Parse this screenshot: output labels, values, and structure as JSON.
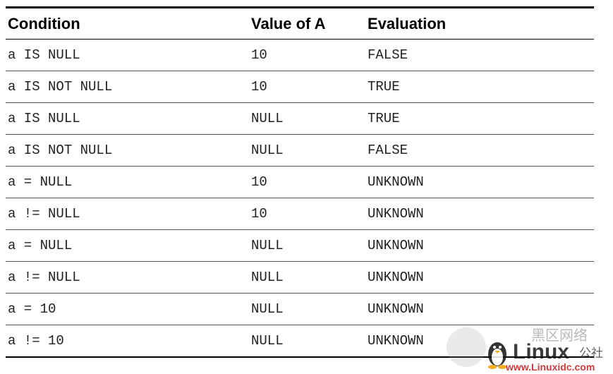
{
  "table": {
    "headers": [
      "Condition",
      "Value of A",
      "Evaluation"
    ],
    "rows": [
      [
        "a IS NULL",
        "10",
        "FALSE"
      ],
      [
        "a IS NOT NULL",
        "10",
        "TRUE"
      ],
      [
        "a IS NULL",
        "NULL",
        "TRUE"
      ],
      [
        "a IS NOT NULL",
        "NULL",
        "FALSE"
      ],
      [
        "a = NULL",
        "10",
        "UNKNOWN"
      ],
      [
        "a != NULL",
        "10",
        "UNKNOWN"
      ],
      [
        "a = NULL",
        "NULL",
        "UNKNOWN"
      ],
      [
        "a != NULL",
        "NULL",
        "UNKNOWN"
      ],
      [
        "a = 10",
        "NULL",
        "UNKNOWN"
      ],
      [
        "a != 10",
        "NULL",
        "UNKNOWN"
      ]
    ]
  },
  "watermark": {
    "brand": "Linux",
    "suffix": "公社",
    "chinese": "黑区网络",
    "url": "www.Linuxidc.com",
    "accent": "#c81818",
    "logo": "penguin-icon"
  }
}
